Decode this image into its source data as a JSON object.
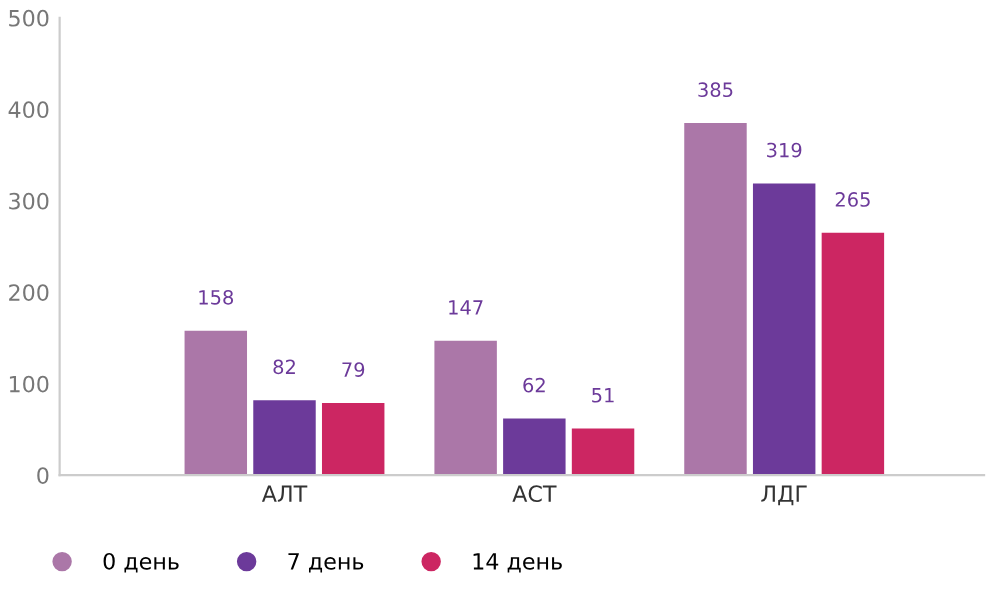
{
  "chart_data": {
    "type": "bar",
    "categories": [
      "АЛТ",
      "АСТ",
      "ЛДГ"
    ],
    "series": [
      {
        "name": "0 день",
        "color": "#ab77a8",
        "values": [
          158,
          147,
          385
        ]
      },
      {
        "name": "7 день",
        "color": "#6c3a9a",
        "values": [
          82,
          62,
          319
        ]
      },
      {
        "name": "14 день",
        "color": "#cc2662",
        "values": [
          79,
          51,
          265
        ]
      }
    ],
    "ylim": [
      0,
      500
    ],
    "yticks": [
      0,
      100,
      200,
      300,
      400,
      500
    ],
    "data_labels": true,
    "legend": "bottom",
    "grid": false
  }
}
